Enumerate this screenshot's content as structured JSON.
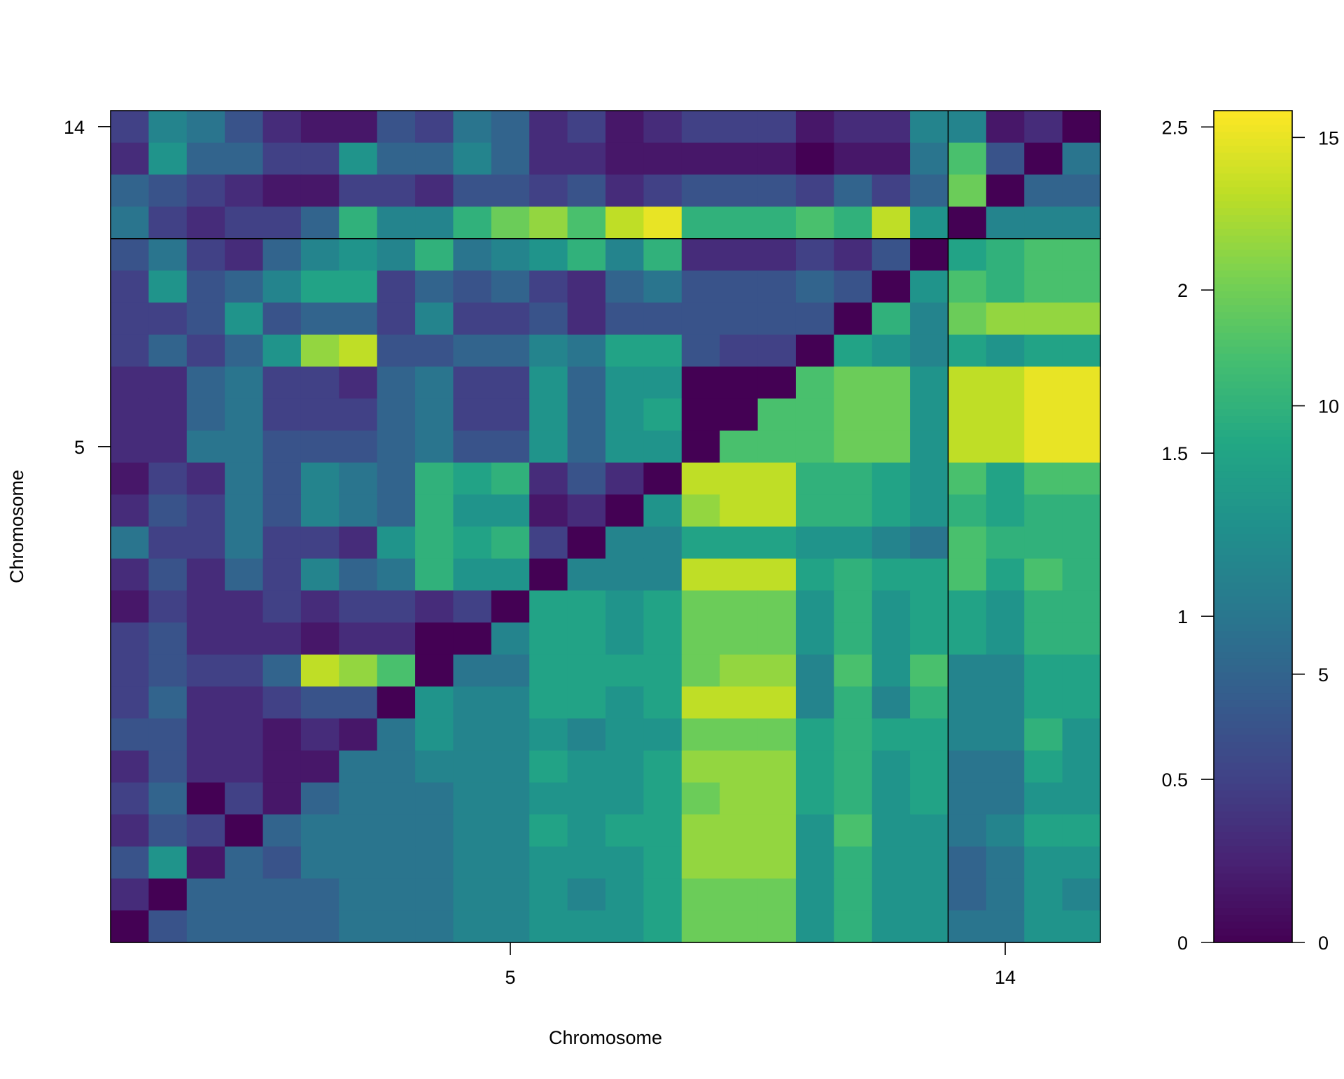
{
  "chart_data": {
    "type": "heatmap",
    "title": "",
    "xlabel": "Chromosome",
    "ylabel": "Chromosome",
    "x_ticks": [
      {
        "label": "5",
        "col": 11
      },
      {
        "label": "14",
        "col": 24
      }
    ],
    "y_ticks": [
      {
        "label": "5",
        "row": 11
      },
      {
        "label": "14",
        "row": 1
      }
    ],
    "boundaries": {
      "col": 22,
      "row": 4
    },
    "n_rows": 26,
    "n_cols": 26,
    "colorbar_left": {
      "ticks": [
        "0",
        "0.5",
        "1",
        "1.5",
        "2",
        "2.5"
      ],
      "range": [
        0,
        2.55
      ]
    },
    "colorbar_right": {
      "ticks": [
        "0",
        "5",
        "10",
        "15"
      ],
      "range": [
        0,
        15.5
      ]
    },
    "colormap": "viridis",
    "colors": {
      "low": "#440154",
      "mid": "#21908C",
      "high": "#FDE725"
    },
    "grid": false,
    "values": [
      [
        3,
        7,
        6,
        4,
        2,
        1,
        1,
        4,
        3,
        6,
        5,
        2,
        3,
        1,
        2,
        3,
        3,
        3,
        1,
        2,
        2,
        7,
        7,
        1,
        2,
        0
      ],
      [
        2,
        8,
        5,
        5,
        3,
        3,
        8,
        5,
        5,
        7,
        5,
        2,
        2,
        1,
        1,
        1,
        1,
        1,
        0,
        1,
        1,
        6,
        11,
        4,
        0,
        6
      ],
      [
        5,
        4,
        3,
        2,
        1,
        1,
        3,
        3,
        2,
        4,
        4,
        3,
        4,
        2,
        3,
        4,
        4,
        4,
        3,
        5,
        3,
        5,
        12,
        0,
        5,
        5
      ],
      [
        6,
        3,
        2,
        3,
        3,
        5,
        10,
        7,
        7,
        10,
        12,
        13,
        11,
        14,
        15,
        10,
        10,
        10,
        11,
        10,
        14,
        8,
        0,
        7,
        7,
        7
      ],
      [
        4,
        6,
        3,
        2,
        5,
        7,
        8,
        7,
        10,
        6,
        7,
        8,
        10,
        7,
        10,
        2,
        2,
        2,
        3,
        2,
        4,
        0,
        9,
        10,
        11,
        11
      ],
      [
        3,
        8,
        4,
        5,
        7,
        9,
        9,
        3,
        5,
        4,
        5,
        3,
        2,
        5,
        6,
        4,
        4,
        4,
        5,
        4,
        0,
        8,
        11,
        10,
        11,
        11
      ],
      [
        3,
        3,
        4,
        8,
        4,
        5,
        5,
        3,
        7,
        3,
        3,
        4,
        2,
        4,
        4,
        4,
        4,
        4,
        4,
        0,
        10,
        7,
        12,
        13,
        13,
        13
      ],
      [
        3,
        5,
        3,
        5,
        8,
        13,
        14,
        4,
        4,
        5,
        5,
        7,
        6,
        9,
        9,
        4,
        3,
        3,
        0,
        9,
        8,
        7,
        9,
        8,
        9,
        9
      ],
      [
        2,
        2,
        5,
        6,
        3,
        3,
        2,
        5,
        6,
        3,
        3,
        8,
        5,
        8,
        8,
        0,
        0,
        0,
        11,
        12,
        12,
        8,
        14,
        14,
        15,
        15
      ],
      [
        2,
        2,
        5,
        6,
        3,
        3,
        3,
        5,
        6,
        3,
        3,
        8,
        5,
        8,
        9,
        0,
        0,
        11,
        11,
        12,
        12,
        8,
        14,
        14,
        15,
        15
      ],
      [
        2,
        2,
        6,
        6,
        4,
        4,
        4,
        5,
        6,
        4,
        4,
        8,
        5,
        8,
        8,
        0,
        11,
        11,
        11,
        12,
        12,
        8,
        14,
        14,
        15,
        15
      ],
      [
        1,
        3,
        2,
        6,
        4,
        7,
        6,
        5,
        10,
        9,
        10,
        2,
        4,
        2,
        0,
        14,
        14,
        14,
        10,
        10,
        9,
        8,
        11,
        9,
        11,
        11
      ],
      [
        2,
        4,
        3,
        6,
        4,
        7,
        6,
        5,
        10,
        8,
        8,
        1,
        2,
        0,
        8,
        13,
        14,
        14,
        10,
        10,
        9,
        8,
        10,
        9,
        10,
        10
      ],
      [
        6,
        3,
        3,
        6,
        3,
        3,
        2,
        8,
        10,
        9,
        10,
        3,
        0,
        7,
        7,
        9,
        9,
        9,
        8,
        8,
        7,
        6,
        11,
        10,
        10,
        10
      ],
      [
        2,
        4,
        2,
        5,
        3,
        7,
        5,
        6,
        10,
        8,
        8,
        0,
        7,
        7,
        7,
        14,
        14,
        14,
        9,
        10,
        9,
        9,
        11,
        9,
        11,
        10
      ],
      [
        1,
        3,
        2,
        2,
        3,
        2,
        3,
        3,
        2,
        3,
        0,
        9,
        9,
        8,
        9,
        12,
        12,
        12,
        8,
        10,
        8,
        9,
        9,
        8,
        10,
        10
      ],
      [
        3,
        4,
        2,
        2,
        2,
        1,
        2,
        2,
        0,
        0,
        7,
        9,
        9,
        8,
        9,
        12,
        12,
        12,
        8,
        10,
        8,
        9,
        9,
        8,
        10,
        10
      ],
      [
        3,
        4,
        3,
        3,
        5,
        14,
        13,
        11,
        0,
        6,
        6,
        9,
        9,
        9,
        9,
        12,
        13,
        13,
        7,
        11,
        8,
        11,
        7,
        7,
        9,
        9
      ],
      [
        3,
        5,
        2,
        2,
        3,
        4,
        4,
        0,
        8,
        7,
        7,
        9,
        9,
        8,
        9,
        14,
        14,
        14,
        7,
        10,
        7,
        10,
        7,
        7,
        9,
        9
      ],
      [
        4,
        4,
        2,
        2,
        1,
        2,
        1,
        6,
        8,
        7,
        7,
        8,
        7,
        8,
        8,
        12,
        12,
        12,
        9,
        10,
        9,
        9,
        7,
        7,
        10,
        8
      ],
      [
        2,
        4,
        2,
        2,
        1,
        1,
        6,
        6,
        7,
        7,
        7,
        9,
        8,
        8,
        9,
        13,
        13,
        13,
        9,
        10,
        8,
        9,
        6,
        6,
        9,
        8
      ],
      [
        3,
        5,
        0,
        3,
        1,
        5,
        6,
        6,
        6,
        7,
        7,
        8,
        8,
        8,
        9,
        12,
        13,
        13,
        9,
        10,
        8,
        9,
        6,
        6,
        8,
        8
      ],
      [
        2,
        4,
        3,
        0,
        5,
        6,
        6,
        6,
        6,
        7,
        7,
        9,
        8,
        9,
        9,
        13,
        13,
        13,
        8,
        11,
        8,
        8,
        6,
        7,
        9,
        9
      ],
      [
        4,
        8,
        1,
        5,
        4,
        6,
        6,
        6,
        6,
        7,
        7,
        8,
        8,
        8,
        9,
        13,
        13,
        13,
        8,
        10,
        8,
        8,
        5,
        6,
        8,
        8
      ],
      [
        2,
        0,
        5,
        5,
        5,
        5,
        6,
        6,
        6,
        7,
        7,
        8,
        7,
        8,
        9,
        12,
        12,
        12,
        8,
        10,
        8,
        8,
        5,
        6,
        8,
        7
      ],
      [
        0,
        4,
        5,
        5,
        5,
        5,
        6,
        6,
        6,
        7,
        7,
        8,
        8,
        8,
        9,
        12,
        12,
        12,
        8,
        10,
        8,
        8,
        6,
        6,
        8,
        8
      ]
    ]
  }
}
